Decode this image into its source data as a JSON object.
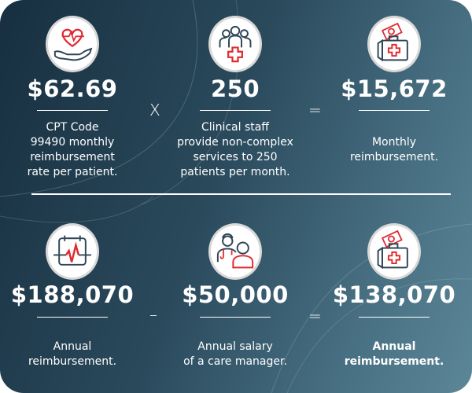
{
  "colors": {
    "accent": "#e02a2f",
    "icon_stroke": "#2f4656",
    "bg_dark": "#172f40",
    "bg_light": "#5c8797"
  },
  "top_row": [
    {
      "icon": "heart-in-hand-icon",
      "value": "$62.69",
      "caption": [
        "CPT Code",
        "99490 monthly",
        "reimbursement",
        "rate per patient."
      ]
    },
    {
      "icon": "staff-medical-icon",
      "value": "250",
      "caption": [
        "Clinical staff",
        "provide non-complex",
        "services to 250",
        "patients per month."
      ]
    },
    {
      "icon": "medical-kit-money-icon",
      "value": "$15,672",
      "caption": [
        "Monthly",
        "reimbursement."
      ]
    }
  ],
  "top_operators": [
    "X",
    "="
  ],
  "bottom_row": [
    {
      "icon": "calendar-heartbeat-icon",
      "value": "$188,070",
      "caption": [
        "Annual",
        "reimbursement."
      ]
    },
    {
      "icon": "care-manager-patient-icon",
      "value": "$50,000",
      "caption": [
        "Annual salary",
        "of a care manager."
      ]
    },
    {
      "icon": "medical-kit-money-icon",
      "value": "$138,070",
      "caption": [
        "Annual",
        "reimbursement."
      ]
    }
  ],
  "bottom_operators": [
    "–",
    "="
  ]
}
